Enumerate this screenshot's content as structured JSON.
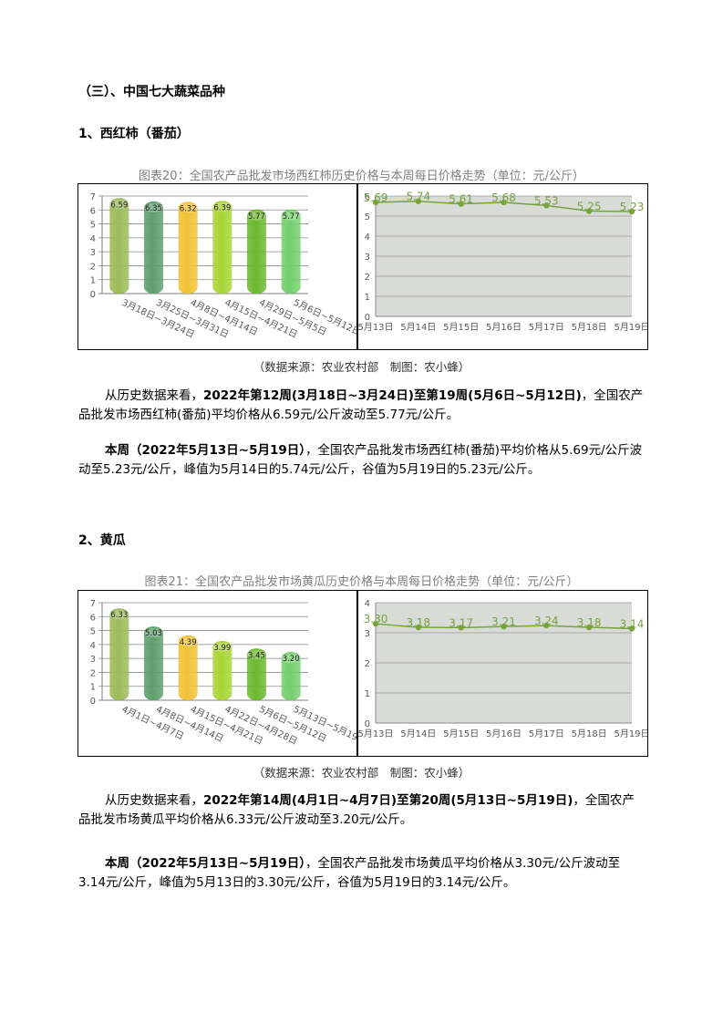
{
  "section_heading": "（三）、中国七大蔬菜品种",
  "tomato": {
    "heading": "1、西红柿（番茄）",
    "caption": "图表20：全国农产品批发市场西红柿历史价格与本周每日价格走势（单位：元/公斤）",
    "source": "（数据来源：农业农村部　制图：农小蜂）",
    "para1": {
      "lead": "从历史数据来看，",
      "bold": "2022年第12周(3月18日~3月24日)至第19周(5月6日~5月12日)",
      "rest": "，全国农产品批发市场西红柿(番茄)平均价格从6.59元/公斤波动至5.77元/公斤。"
    },
    "para2": {
      "bold": "本周（2022年5月13日~5月19日）",
      "rest": "，全国农产品批发市场西红柿(番茄)平均价格从5.69元/公斤波动至5.23元/公斤，峰值为5月14日的5.74元/公斤，谷值为5月19日的5.23元/公斤。"
    }
  },
  "cucumber": {
    "heading": "2、黄瓜",
    "caption": "图表21：全国农产品批发市场黄瓜历史价格与本周每日价格走势（单位：元/公斤）",
    "source": "（数据来源：农业农村部　制图：农小蜂）",
    "para1": {
      "lead": "从历史数据来看，",
      "bold": "2022年第14周(4月1日~4月7日)至第20周(5月13日~5月19日)",
      "rest": "，全国农产品批发市场黄瓜平均价格从6.33元/公斤波动至3.20元/公斤。"
    },
    "para2": {
      "bold": "本周（2022年5月13日~5月19日）",
      "rest": "，全国农产品批发市场黄瓜平均价格从3.30元/公斤波动至3.14元/公斤，峰值为5月13日的3.30元/公斤，谷值为5月19日的3.14元/公斤。"
    }
  },
  "chart_data": [
    {
      "type": "bar",
      "categories": [
        "3月18日~3月24日",
        "3月25日~3月31日",
        "4月8日~4月14日",
        "4月15日~4月21日",
        "4月29日~5月5日",
        "5月6日~5月12日"
      ],
      "values": [
        6.59,
        6.35,
        6.32,
        6.39,
        5.77,
        5.77
      ],
      "ylim": [
        0,
        7
      ],
      "yticks": [
        0,
        1,
        2,
        3,
        4,
        5,
        6,
        7
      ],
      "colors": [
        "#9bbb59",
        "#5e9e6b",
        "#f1c232",
        "#a8d534",
        "#6bb82f",
        "#74cf6c"
      ]
    },
    {
      "type": "area",
      "categories": [
        "5月13日",
        "5月14日",
        "5月15日",
        "5月16日",
        "5月17日",
        "5月18日",
        "5月19日"
      ],
      "values": [
        5.69,
        5.74,
        5.61,
        5.68,
        5.53,
        5.25,
        5.23
      ],
      "ylim": [
        0,
        6
      ],
      "yticks": [
        0,
        1,
        2,
        3,
        4,
        5,
        6
      ],
      "line_color": "#77a33c",
      "fill_color": "#d9dbd6"
    },
    {
      "type": "bar",
      "categories": [
        "4月1日~4月7日",
        "4月8日~4月14日",
        "4月15日~4月21日",
        "4月22日~4月28日",
        "5月6日~5月12日",
        "5月13日~5月19日"
      ],
      "values": [
        6.33,
        5.03,
        4.39,
        3.99,
        3.45,
        3.2
      ],
      "ylim": [
        0,
        7
      ],
      "yticks": [
        0,
        1,
        2,
        3,
        4,
        5,
        6,
        7
      ],
      "colors": [
        "#9bbb59",
        "#5e9e6b",
        "#f1c232",
        "#a8d534",
        "#6bb82f",
        "#74cf6c"
      ]
    },
    {
      "type": "area",
      "categories": [
        "5月13日",
        "5月14日",
        "5月15日",
        "5月16日",
        "5月17日",
        "5月18日",
        "5月19日"
      ],
      "values": [
        3.3,
        3.18,
        3.17,
        3.21,
        3.24,
        3.18,
        3.14
      ],
      "ylim": [
        0,
        4
      ],
      "yticks": [
        0,
        1,
        2,
        3,
        4
      ],
      "line_color": "#77a33c",
      "fill_color": "#d9dbd6"
    }
  ]
}
